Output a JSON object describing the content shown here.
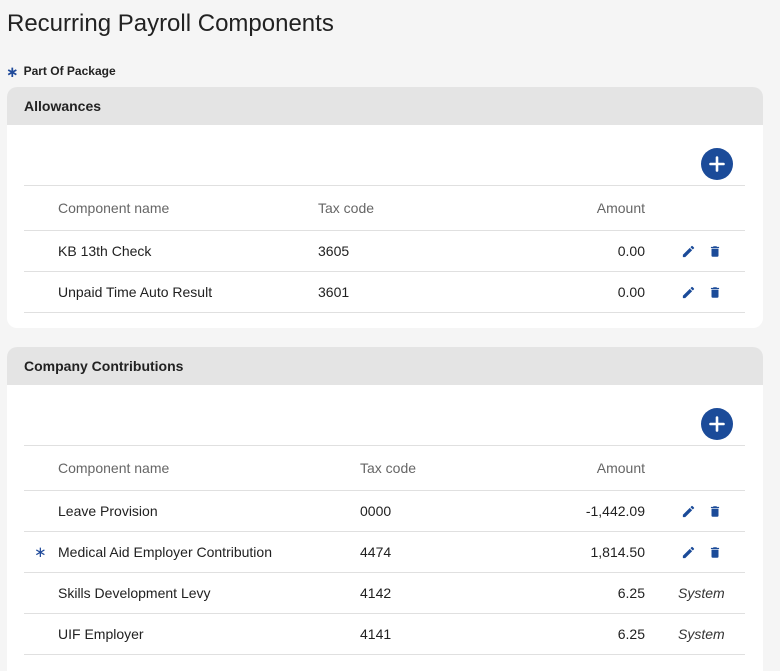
{
  "page": {
    "title": "Recurring Payroll Components"
  },
  "legend": {
    "marker": "∗",
    "label": "Part Of Package"
  },
  "allowances": {
    "title": "Allowances",
    "columns": {
      "name": "Component name",
      "tax_code": "Tax code",
      "amount": "Amount"
    },
    "rows": [
      {
        "name": "KB 13th Check",
        "tax_code": "3605",
        "amount": "0.00"
      },
      {
        "name": "Unpaid Time Auto Result",
        "tax_code": "3601",
        "amount": "0.00"
      }
    ]
  },
  "contributions": {
    "title": "Company Contributions",
    "columns": {
      "name": "Component name",
      "tax_code": "Tax code",
      "amount": "Amount"
    },
    "rows": [
      {
        "marker": "",
        "name": "Leave Provision",
        "tax_code": "0000",
        "amount": "-1,442.09"
      },
      {
        "marker": "∗",
        "name": "Medical Aid Employer Contribution",
        "tax_code": "4474",
        "amount": "1,814.50"
      },
      {
        "marker": "",
        "name": "Skills Development Levy",
        "tax_code": "4142",
        "amount": "6.25",
        "status": "System"
      },
      {
        "marker": "",
        "name": "UIF Employer",
        "tax_code": "4141",
        "amount": "6.25",
        "status": "System"
      }
    ]
  },
  "colors": {
    "accent": "#1b4b99",
    "header_bg": "#e4e4e4",
    "page_bg": "#f5f5f5"
  },
  "icons": {
    "add": "plus-icon",
    "edit": "pencil-icon",
    "delete": "trash-icon"
  }
}
